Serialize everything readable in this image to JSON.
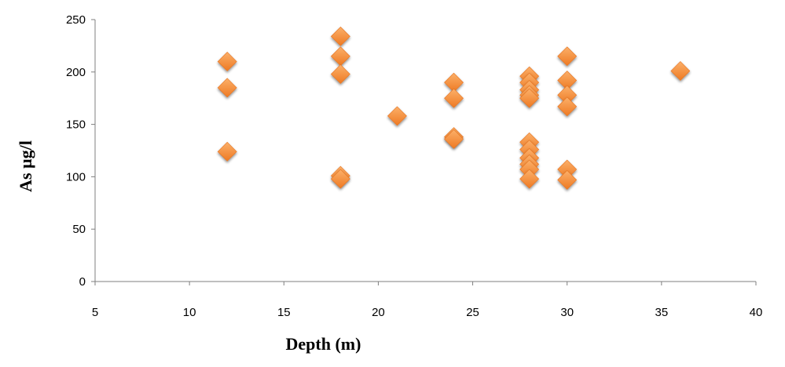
{
  "chart_data": {
    "type": "scatter",
    "title": "",
    "xlabel": "Depth (m)",
    "ylabel": "As µg/l",
    "xlim": [
      5,
      40
    ],
    "ylim": [
      0,
      250
    ],
    "xticks": [
      5,
      10,
      15,
      20,
      25,
      30,
      35,
      40
    ],
    "yticks": [
      0,
      50,
      100,
      150,
      200,
      250
    ],
    "grid": false,
    "legend": "none",
    "marker": "diamond",
    "marker_color": "#F28A33",
    "points": [
      {
        "x": 12,
        "y": 210
      },
      {
        "x": 12,
        "y": 185
      },
      {
        "x": 12,
        "y": 124
      },
      {
        "x": 18,
        "y": 234
      },
      {
        "x": 18,
        "y": 215
      },
      {
        "x": 18,
        "y": 198
      },
      {
        "x": 18,
        "y": 101
      },
      {
        "x": 18,
        "y": 98
      },
      {
        "x": 21,
        "y": 158
      },
      {
        "x": 24,
        "y": 190
      },
      {
        "x": 24,
        "y": 175
      },
      {
        "x": 24,
        "y": 138
      },
      {
        "x": 24,
        "y": 136
      },
      {
        "x": 28,
        "y": 196
      },
      {
        "x": 28,
        "y": 190
      },
      {
        "x": 28,
        "y": 183
      },
      {
        "x": 28,
        "y": 178
      },
      {
        "x": 28,
        "y": 175
      },
      {
        "x": 28,
        "y": 133
      },
      {
        "x": 28,
        "y": 126
      },
      {
        "x": 28,
        "y": 118
      },
      {
        "x": 28,
        "y": 112
      },
      {
        "x": 28,
        "y": 107
      },
      {
        "x": 28,
        "y": 98
      },
      {
        "x": 30,
        "y": 215
      },
      {
        "x": 30,
        "y": 192
      },
      {
        "x": 30,
        "y": 178
      },
      {
        "x": 30,
        "y": 167
      },
      {
        "x": 30,
        "y": 107
      },
      {
        "x": 30,
        "y": 97
      },
      {
        "x": 36,
        "y": 201
      }
    ]
  }
}
